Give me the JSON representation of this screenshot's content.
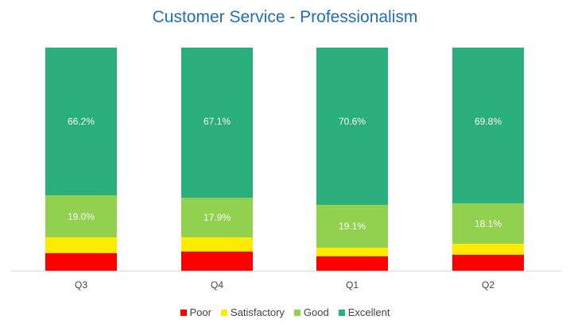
{
  "chart_data": {
    "type": "bar",
    "stacked": true,
    "title": "Customer Service - Professionalism",
    "categories": [
      "Q3",
      "Q4",
      "Q1",
      "Q2"
    ],
    "series": [
      {
        "name": "Poor",
        "color": "#ff0000",
        "values": [
          7.7,
          8.5,
          6.5,
          7.2
        ],
        "labels": [
          "",
          "",
          "",
          ""
        ]
      },
      {
        "name": "Satisfactory",
        "color": "#ffeb00",
        "values": [
          7.1,
          6.5,
          3.8,
          4.9
        ],
        "labels": [
          "",
          "",
          "",
          ""
        ]
      },
      {
        "name": "Good",
        "color": "#92d050",
        "values": [
          19.0,
          17.9,
          19.1,
          18.1
        ],
        "labels": [
          "19.0%",
          "17.9%",
          "19.1%",
          "18.1%"
        ]
      },
      {
        "name": "Excellent",
        "color": "#2aae7b",
        "values": [
          66.2,
          67.1,
          70.6,
          69.8
        ],
        "labels": [
          "66.2%",
          "67.1%",
          "70.6%",
          "69.8%"
        ]
      }
    ],
    "xlabel": "",
    "ylabel": "",
    "ylim": [
      0,
      100
    ],
    "grid": false,
    "legend_position": "bottom"
  }
}
